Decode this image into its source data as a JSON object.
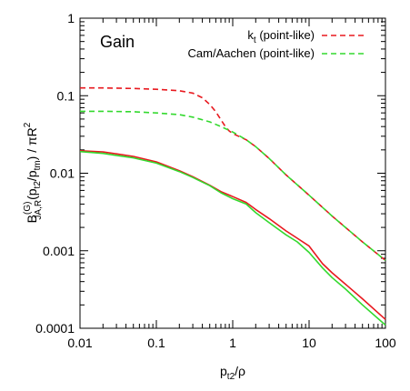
{
  "chart_data": {
    "type": "line",
    "annotation": "Gain",
    "xlabel": {
      "main": "p",
      "sub": "t2",
      "tail": "/ρ"
    },
    "ylabel": {
      "main": "B",
      "sup": "(G)",
      "sub": "JA,R",
      "mid": "(p",
      "sub2": "t2",
      "mid2": "/p",
      "sub3": "tm",
      "tail": ") / πR",
      "sup2": "2"
    },
    "xscale": "log",
    "yscale": "log",
    "xlim": [
      0.01,
      100
    ],
    "ylim": [
      0.0001,
      1
    ],
    "xticks": [
      {
        "value": 0.01,
        "label": "0.01"
      },
      {
        "value": 0.1,
        "label": "0.1"
      },
      {
        "value": 1,
        "label": "1"
      },
      {
        "value": 10,
        "label": "10"
      },
      {
        "value": 100,
        "label": "100"
      }
    ],
    "yticks": [
      {
        "value": 0.0001,
        "label": "0.0001"
      },
      {
        "value": 0.001,
        "label": "0.001"
      },
      {
        "value": 0.01,
        "label": "0.01"
      },
      {
        "value": 0.1,
        "label": "0.1"
      },
      {
        "value": 1,
        "label": "1"
      }
    ],
    "grid": false,
    "legend_position": "top-right",
    "series": [
      {
        "name": "k",
        "name_sub": "t",
        "name_tail": " (point-like)",
        "legend": true,
        "color": "#e8191f",
        "dash": true,
        "points": [
          [
            0.01,
            0.126
          ],
          [
            0.02,
            0.126
          ],
          [
            0.05,
            0.124
          ],
          [
            0.1,
            0.121
          ],
          [
            0.2,
            0.116
          ],
          [
            0.3,
            0.108
          ],
          [
            0.4,
            0.094
          ],
          [
            0.5,
            0.077
          ],
          [
            0.6,
            0.062
          ],
          [
            0.7,
            0.049
          ],
          [
            0.8,
            0.04
          ],
          [
            0.9,
            0.035
          ],
          [
            1,
            0.0325
          ],
          [
            1.5,
            0.027
          ],
          [
            2,
            0.022
          ],
          [
            3,
            0.0155
          ],
          [
            5,
            0.0095
          ],
          [
            10,
            0.0052
          ],
          [
            20,
            0.0028
          ],
          [
            50,
            0.0013
          ],
          [
            100,
            0.00075
          ]
        ]
      },
      {
        "name": "Cam/Aachen (point-like)",
        "legend": true,
        "color": "#33d92e",
        "dash": true,
        "points": [
          [
            0.01,
            0.063
          ],
          [
            0.02,
            0.063
          ],
          [
            0.05,
            0.062
          ],
          [
            0.1,
            0.06
          ],
          [
            0.2,
            0.057
          ],
          [
            0.3,
            0.053
          ],
          [
            0.5,
            0.046
          ],
          [
            0.7,
            0.04
          ],
          [
            1,
            0.034
          ],
          [
            1.5,
            0.027
          ],
          [
            2,
            0.022
          ],
          [
            3,
            0.0155
          ],
          [
            5,
            0.0095
          ],
          [
            10,
            0.0052
          ],
          [
            20,
            0.0028
          ],
          [
            50,
            0.0013
          ],
          [
            100,
            0.00075
          ]
        ]
      },
      {
        "name": "",
        "legend": false,
        "color": "#e8191f",
        "dash": false,
        "points": [
          [
            0.01,
            0.0195
          ],
          [
            0.02,
            0.0188
          ],
          [
            0.03,
            0.0178
          ],
          [
            0.05,
            0.0165
          ],
          [
            0.1,
            0.014
          ],
          [
            0.2,
            0.0108
          ],
          [
            0.3,
            0.009
          ],
          [
            0.5,
            0.007
          ],
          [
            0.7,
            0.0058
          ],
          [
            1,
            0.005
          ],
          [
            1.5,
            0.0042
          ],
          [
            2,
            0.0034
          ],
          [
            3,
            0.0026
          ],
          [
            5,
            0.0018
          ],
          [
            7,
            0.00145
          ],
          [
            10,
            0.00115
          ],
          [
            15,
            0.00068
          ],
          [
            20,
            0.00052
          ],
          [
            30,
            0.00037
          ],
          [
            50,
            0.00024
          ],
          [
            100,
            0.00013
          ]
        ]
      },
      {
        "name": "",
        "legend": false,
        "color": "#33d92e",
        "dash": false,
        "points": [
          [
            0.01,
            0.019
          ],
          [
            0.02,
            0.018
          ],
          [
            0.03,
            0.017
          ],
          [
            0.05,
            0.0158
          ],
          [
            0.1,
            0.0135
          ],
          [
            0.2,
            0.0105
          ],
          [
            0.3,
            0.0088
          ],
          [
            0.5,
            0.0069
          ],
          [
            0.7,
            0.0056
          ],
          [
            1,
            0.0047
          ],
          [
            1.5,
            0.004
          ],
          [
            2,
            0.0031
          ],
          [
            3,
            0.0023
          ],
          [
            5,
            0.0016
          ],
          [
            7,
            0.0013
          ],
          [
            10,
            0.00095
          ],
          [
            15,
            0.0006
          ],
          [
            20,
            0.00045
          ],
          [
            30,
            0.00032
          ],
          [
            50,
            0.0002
          ],
          [
            100,
            0.00011
          ]
        ]
      }
    ]
  }
}
